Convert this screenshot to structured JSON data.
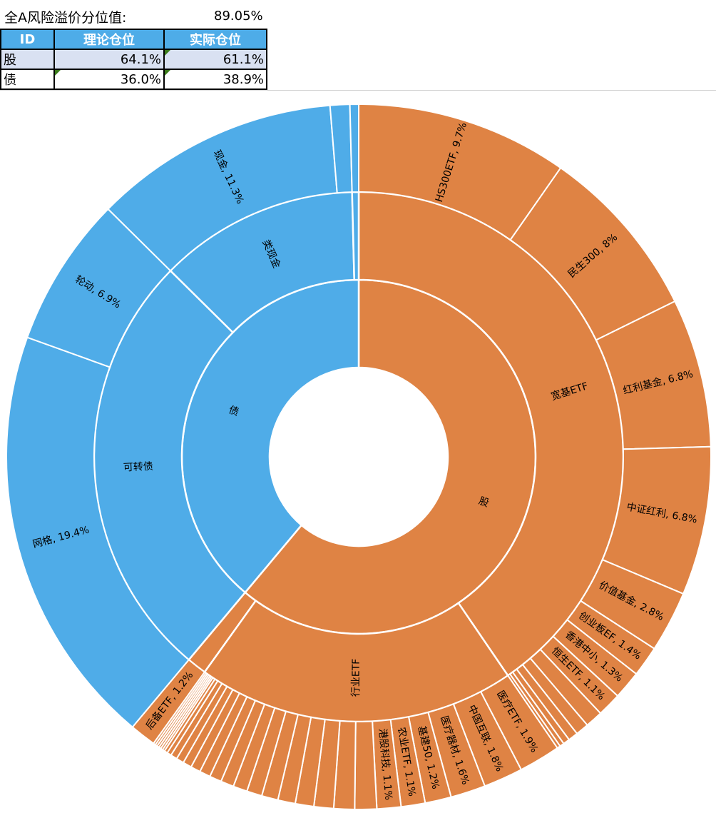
{
  "header": {
    "label": "全A风险溢价分位值:",
    "value": "89.05%"
  },
  "table": {
    "columns": [
      "ID",
      "理论仓位",
      "实际仓位"
    ],
    "rows": [
      {
        "id": "股",
        "theory": "64.1%",
        "actual": "61.1%"
      },
      {
        "id": "债",
        "theory": "36.0%",
        "actual": "38.9%"
      }
    ]
  },
  "colors": {
    "stock": "#DF8344",
    "bond": "#4FACE8",
    "header": "#4EACE8"
  },
  "chart_data": {
    "type": "sunburst",
    "unit": "%",
    "children": [
      {
        "name": "股",
        "value": 61.1,
        "color": "stock",
        "children": [
          {
            "name": "宽基ETF",
            "children": [
              {
                "name": "HS300ETF",
                "value": 9.7,
                "label": true
              },
              {
                "name": "民生300",
                "value": 8.0,
                "label": true
              },
              {
                "name": "红利基金",
                "value": 6.8,
                "label": true
              },
              {
                "name": "中证红利",
                "value": 6.8,
                "label": true
              },
              {
                "name": "价值基金",
                "value": 2.8,
                "label": true
              },
              {
                "name": "创业板EF",
                "value": 1.4,
                "label": true
              },
              {
                "name": "香港中小",
                "value": 1.3,
                "label": true
              },
              {
                "name": "恒生ETF",
                "value": 1.1,
                "label": true
              },
              {
                "value": 0.8
              },
              {
                "value": 0.6
              },
              {
                "value": 0.45
              },
              {
                "value": 0.3
              },
              {
                "value": 0.2
              },
              {
                "value": 0.15
              }
            ]
          },
          {
            "name": "行业ETF",
            "children": [
              {
                "name": "医疗ETF",
                "value": 1.9,
                "label": true
              },
              {
                "name": "中国互联",
                "value": 1.8,
                "label": true
              },
              {
                "name": "医疗器材",
                "value": 1.6,
                "label": true
              },
              {
                "name": "基建50",
                "value": 1.2,
                "label": true
              },
              {
                "name": "农业ETF",
                "value": 1.1,
                "label": true
              },
              {
                "name": "港股科技",
                "value": 1.1,
                "label": true
              },
              {
                "value": 1.0
              },
              {
                "value": 0.95
              },
              {
                "value": 0.9
              },
              {
                "value": 0.85
              },
              {
                "value": 0.8
              },
              {
                "value": 0.75
              },
              {
                "value": 0.7
              },
              {
                "value": 0.65
              },
              {
                "value": 0.6
              },
              {
                "value": 0.55
              },
              {
                "value": 0.5
              },
              {
                "value": 0.45
              },
              {
                "value": 0.4
              },
              {
                "value": 0.35
              },
              {
                "value": 0.3
              },
              {
                "value": 0.2
              },
              {
                "value": 0.15
              },
              {
                "value": 0.1
              },
              {
                "value": 0.1
              },
              {
                "value": 0.1
              },
              {
                "value": 0.1
              },
              {
                "value": 0.1
              },
              {
                "value": 0.1
              }
            ]
          },
          {
            "children": [
              {
                "name": "后备ETF",
                "value": 1.2,
                "label": true
              }
            ]
          }
        ]
      },
      {
        "name": "债",
        "value": 38.9,
        "color": "bond",
        "children": [
          {
            "name": "可转债",
            "children": [
              {
                "name": "网格",
                "value": 19.4,
                "label": true
              },
              {
                "name": "轮动",
                "value": 6.9,
                "label": true
              }
            ]
          },
          {
            "name": "类现金",
            "children": [
              {
                "name": "现金",
                "value": 11.3,
                "label": true
              },
              {
                "value": 0.9
              }
            ]
          },
          {
            "children": [
              {
                "value": 0.4
              }
            ]
          }
        ]
      }
    ]
  }
}
